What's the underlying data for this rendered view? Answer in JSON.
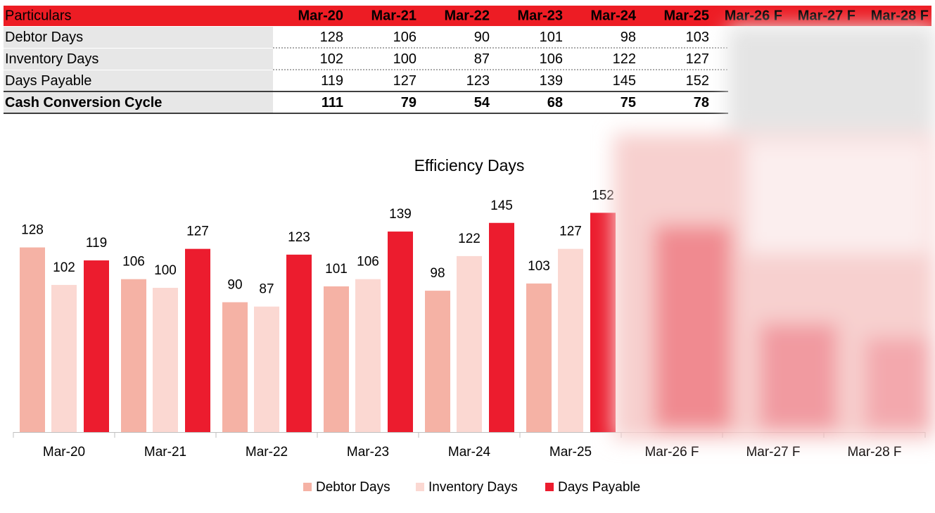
{
  "table": {
    "header": [
      "Particulars",
      "Mar-20",
      "Mar-21",
      "Mar-22",
      "Mar-23",
      "Mar-24",
      "Mar-25",
      "Mar-26 F",
      "Mar-27 F",
      "Mar-28 F"
    ],
    "rows": [
      [
        "Debtor Days",
        128,
        106,
        90,
        101,
        98,
        103,
        null,
        null,
        null
      ],
      [
        "Inventory Days",
        102,
        100,
        87,
        106,
        122,
        127,
        null,
        null,
        null
      ],
      [
        "Days Payable",
        119,
        127,
        123,
        139,
        145,
        152,
        null,
        null,
        null
      ],
      [
        "Cash Conversion Cycle",
        111,
        79,
        54,
        68,
        75,
        78,
        null,
        null,
        null
      ]
    ]
  },
  "chart_data": {
    "type": "bar",
    "title": "Efficiency Days",
    "categories": [
      "Mar-20",
      "Mar-21",
      "Mar-22",
      "Mar-23",
      "Mar-24",
      "Mar-25",
      "Mar-26 F",
      "Mar-27 F",
      "Mar-28 F"
    ],
    "series": [
      {
        "name": "Debtor Days",
        "color": "#f5b2a5",
        "values": [
          128,
          106,
          90,
          101,
          98,
          103,
          null,
          null,
          null
        ]
      },
      {
        "name": "Inventory Days",
        "color": "#fbd8d2",
        "values": [
          102,
          100,
          87,
          106,
          122,
          127,
          null,
          null,
          null
        ]
      },
      {
        "name": "Days Payable",
        "color": "#ec1c2e",
        "values": [
          119,
          127,
          123,
          139,
          145,
          152,
          null,
          null,
          null
        ]
      }
    ],
    "ylim": [
      0,
      160
    ],
    "legend": "bottom"
  }
}
